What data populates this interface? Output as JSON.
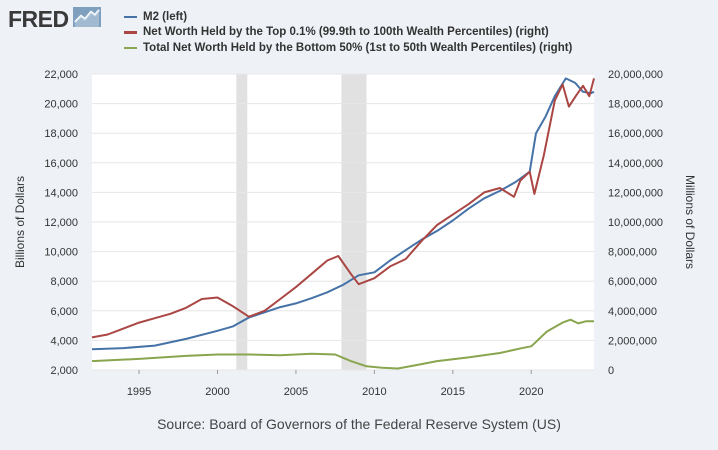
{
  "brand": {
    "name": "FRED",
    "icon": "line-chart-icon"
  },
  "source": "Source: Board of Governors of the Federal Reserve System (US)",
  "colors": {
    "m2": "#4572a7",
    "top": "#aa4643",
    "bottom": "#89a54e",
    "recession": "#e1e1e1",
    "plot_bg": "#ffffff",
    "grid": "#e6e6e6"
  },
  "chart_data": {
    "type": "line",
    "y_axis_left": {
      "title": "Billions of Dollars",
      "range": [
        2000,
        22000
      ],
      "ticks": [
        "2,000",
        "4,000",
        "6,000",
        "8,000",
        "10,000",
        "12,000",
        "14,000",
        "16,000",
        "18,000",
        "20,000",
        "22,000"
      ]
    },
    "y_axis_right": {
      "title": "Millions of Dollars",
      "range": [
        0,
        20000000
      ],
      "ticks": [
        "0",
        "2,000,000",
        "4,000,000",
        "6,000,000",
        "8,000,000",
        "10,000,000",
        "12,000,000",
        "14,000,000",
        "16,000,000",
        "18,000,000",
        "20,000,000"
      ]
    },
    "x_axis": {
      "range": [
        1992,
        2024
      ],
      "ticks": [
        "1995",
        "2000",
        "2005",
        "2010",
        "2015",
        "2020"
      ]
    },
    "recessions": [
      [
        2001.2,
        2001.9
      ],
      [
        2007.9,
        2009.5
      ]
    ],
    "series": [
      {
        "name": "M2 (left)",
        "axis": "left",
        "color": "#4572a7",
        "points": [
          [
            1992,
            3400
          ],
          [
            1994,
            3480
          ],
          [
            1996,
            3650
          ],
          [
            1998,
            4100
          ],
          [
            2000,
            4650
          ],
          [
            2001,
            4950
          ],
          [
            2002,
            5550
          ],
          [
            2003,
            5900
          ],
          [
            2004,
            6250
          ],
          [
            2005,
            6500
          ],
          [
            2006,
            6850
          ],
          [
            2007,
            7250
          ],
          [
            2008,
            7750
          ],
          [
            2009,
            8400
          ],
          [
            2010,
            8600
          ],
          [
            2011,
            9400
          ],
          [
            2012,
            10100
          ],
          [
            2013,
            10800
          ],
          [
            2014,
            11400
          ],
          [
            2015,
            12100
          ],
          [
            2016,
            12900
          ],
          [
            2017,
            13600
          ],
          [
            2018,
            14100
          ],
          [
            2019,
            14700
          ],
          [
            2019.9,
            15400
          ],
          [
            2020.3,
            18000
          ],
          [
            2020.9,
            19100
          ],
          [
            2021.5,
            20500
          ],
          [
            2022.2,
            21700
          ],
          [
            2022.8,
            21400
          ],
          [
            2023.3,
            20800
          ],
          [
            2023.8,
            20700
          ],
          [
            2024,
            20800
          ]
        ]
      },
      {
        "name": "Net Worth Held by the Top 0.1% (99.9th to 100th Wealth Percentiles) (right)",
        "axis": "right",
        "color": "#aa4643",
        "points": [
          [
            1992,
            2200000
          ],
          [
            1993,
            2400000
          ],
          [
            1994,
            2800000
          ],
          [
            1995,
            3200000
          ],
          [
            1996,
            3500000
          ],
          [
            1997,
            3800000
          ],
          [
            1998,
            4200000
          ],
          [
            1999,
            4800000
          ],
          [
            2000,
            4900000
          ],
          [
            2001,
            4300000
          ],
          [
            2002,
            3600000
          ],
          [
            2003,
            4000000
          ],
          [
            2004,
            4800000
          ],
          [
            2005,
            5600000
          ],
          [
            2006,
            6500000
          ],
          [
            2007,
            7400000
          ],
          [
            2007.7,
            7700000
          ],
          [
            2008.5,
            6500000
          ],
          [
            2009,
            5800000
          ],
          [
            2010,
            6200000
          ],
          [
            2011,
            7000000
          ],
          [
            2012,
            7500000
          ],
          [
            2013,
            8700000
          ],
          [
            2014,
            9800000
          ],
          [
            2015,
            10500000
          ],
          [
            2016,
            11200000
          ],
          [
            2017,
            12000000
          ],
          [
            2018,
            12300000
          ],
          [
            2018.9,
            11700000
          ],
          [
            2019.3,
            12800000
          ],
          [
            2019.9,
            13400000
          ],
          [
            2020.2,
            11900000
          ],
          [
            2020.8,
            14500000
          ],
          [
            2021.5,
            18200000
          ],
          [
            2022,
            19300000
          ],
          [
            2022.4,
            17800000
          ],
          [
            2022.9,
            18600000
          ],
          [
            2023.3,
            19200000
          ],
          [
            2023.7,
            18500000
          ],
          [
            2024,
            19700000
          ]
        ]
      },
      {
        "name": "Total Net Worth Held by the Bottom 50% (1st to 50th Wealth Percentiles) (right)",
        "axis": "right",
        "color": "#89a54e",
        "points": [
          [
            1992,
            600000
          ],
          [
            1995,
            750000
          ],
          [
            1998,
            950000
          ],
          [
            2000,
            1050000
          ],
          [
            2002,
            1050000
          ],
          [
            2004,
            1000000
          ],
          [
            2006,
            1100000
          ],
          [
            2007.5,
            1050000
          ],
          [
            2008.5,
            600000
          ],
          [
            2009.5,
            250000
          ],
          [
            2010.5,
            150000
          ],
          [
            2011.5,
            100000
          ],
          [
            2012.5,
            300000
          ],
          [
            2014,
            600000
          ],
          [
            2016,
            850000
          ],
          [
            2018,
            1150000
          ],
          [
            2019.5,
            1500000
          ],
          [
            2020,
            1600000
          ],
          [
            2021,
            2600000
          ],
          [
            2022,
            3200000
          ],
          [
            2022.5,
            3400000
          ],
          [
            2023,
            3150000
          ],
          [
            2023.5,
            3300000
          ],
          [
            2024,
            3300000
          ]
        ]
      }
    ]
  }
}
